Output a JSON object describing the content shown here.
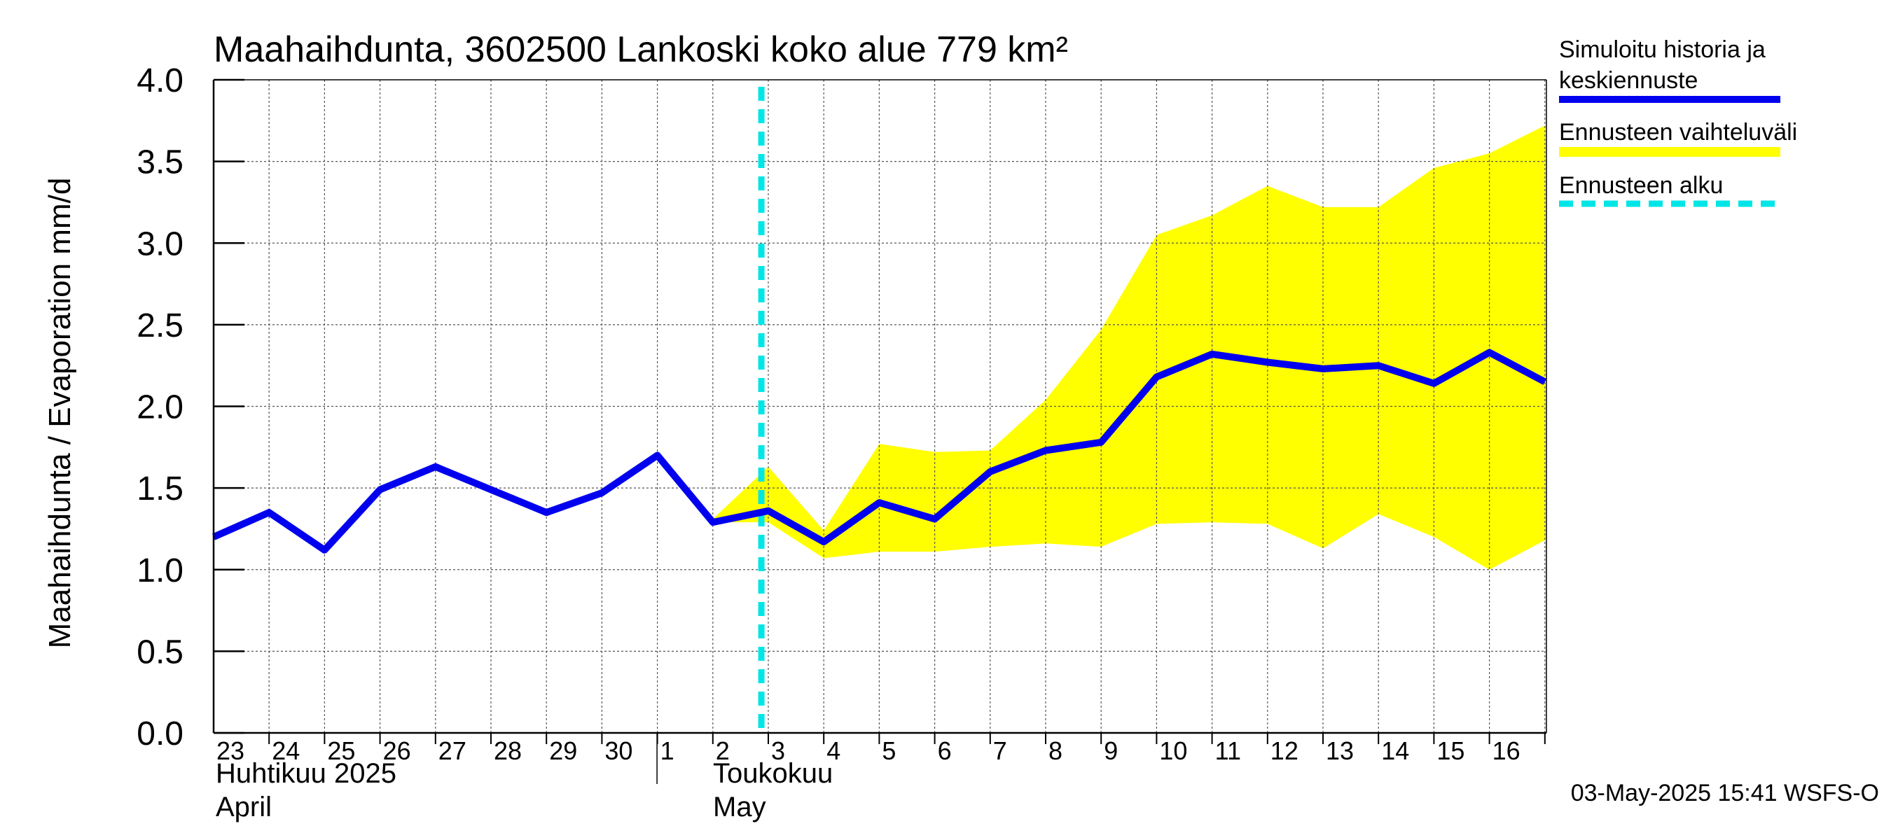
{
  "chart_data": {
    "type": "line",
    "title": "Maahaihdunta, 3602500 Lankoski koko alue 779 km²",
    "ylabel": "Maahaihdunta / Evaporation   mm/d",
    "ylim": [
      0,
      4
    ],
    "yticks": [
      "0.0",
      "0.5",
      "1.0",
      "1.5",
      "2.0",
      "2.5",
      "3.0",
      "3.5",
      "4.0"
    ],
    "x": [
      "2025-04-23",
      "2025-04-24",
      "2025-04-25",
      "2025-04-26",
      "2025-04-27",
      "2025-04-28",
      "2025-04-29",
      "2025-04-30",
      "2025-05-01",
      "2025-05-02",
      "2025-05-03",
      "2025-05-04",
      "2025-05-05",
      "2025-05-06",
      "2025-05-07",
      "2025-05-08",
      "2025-05-09",
      "2025-05-10",
      "2025-05-11",
      "2025-05-12",
      "2025-05-13",
      "2025-05-14",
      "2025-05-15",
      "2025-05-16",
      "2025-05-17"
    ],
    "day_labels": [
      "23",
      "24",
      "25",
      "26",
      "27",
      "28",
      "29",
      "30",
      "1",
      "2",
      "3",
      "4",
      "5",
      "6",
      "7",
      "8",
      "9",
      "10",
      "11",
      "12",
      "13",
      "14",
      "15",
      "16"
    ],
    "month_labels": [
      {
        "line1": "Huhtikuu  2025",
        "line2": "April"
      },
      {
        "line1": "Toukokuu",
        "line2": "May"
      }
    ],
    "series": [
      {
        "name": "Simuloitu historia ja keskiennuste",
        "color": "#0000ee",
        "values": [
          1.2,
          1.35,
          1.12,
          1.49,
          1.63,
          1.49,
          1.35,
          1.47,
          1.7,
          1.29,
          1.36,
          1.17,
          1.41,
          1.31,
          1.6,
          1.73,
          1.78,
          2.18,
          2.32,
          2.27,
          2.23,
          2.25,
          2.14,
          2.33,
          2.15
        ]
      }
    ],
    "band": {
      "name": "Ennusteen vaihteluväli",
      "color": "#ffff00",
      "x_start": "2025-05-02",
      "upper": [
        1.31,
        1.63,
        1.24,
        1.77,
        1.72,
        1.73,
        2.04,
        2.47,
        3.05,
        3.17,
        3.35,
        3.22,
        3.22,
        3.46,
        3.55,
        3.72
      ],
      "lower": [
        1.29,
        1.29,
        1.07,
        1.11,
        1.11,
        1.14,
        1.16,
        1.14,
        1.28,
        1.29,
        1.28,
        1.13,
        1.34,
        1.2,
        1.0,
        1.18
      ]
    },
    "forecast_start": {
      "name": "Ennusteen alku",
      "color": "#00e5e5",
      "x": "2025-05-02T21:00"
    },
    "legend": {
      "placement": "right",
      "items": [
        {
          "label": "Simuloitu historia ja keskiennuste",
          "line1": "Simuloitu historia ja",
          "line2": "keskiennuste",
          "color": "#0000ee",
          "style": "solid"
        },
        {
          "label": "Ennusteen vaihteluväli",
          "line1": "Ennusteen vaihteluväli",
          "line2": "",
          "color": "#ffff00",
          "style": "solid"
        },
        {
          "label": "Ennusteen alku",
          "line1": "Ennusteen alku",
          "line2": "",
          "color": "#00e5e5",
          "style": "dashed"
        }
      ]
    },
    "grid": true,
    "footer": "03-May-2025 15:41 WSFS-O"
  }
}
